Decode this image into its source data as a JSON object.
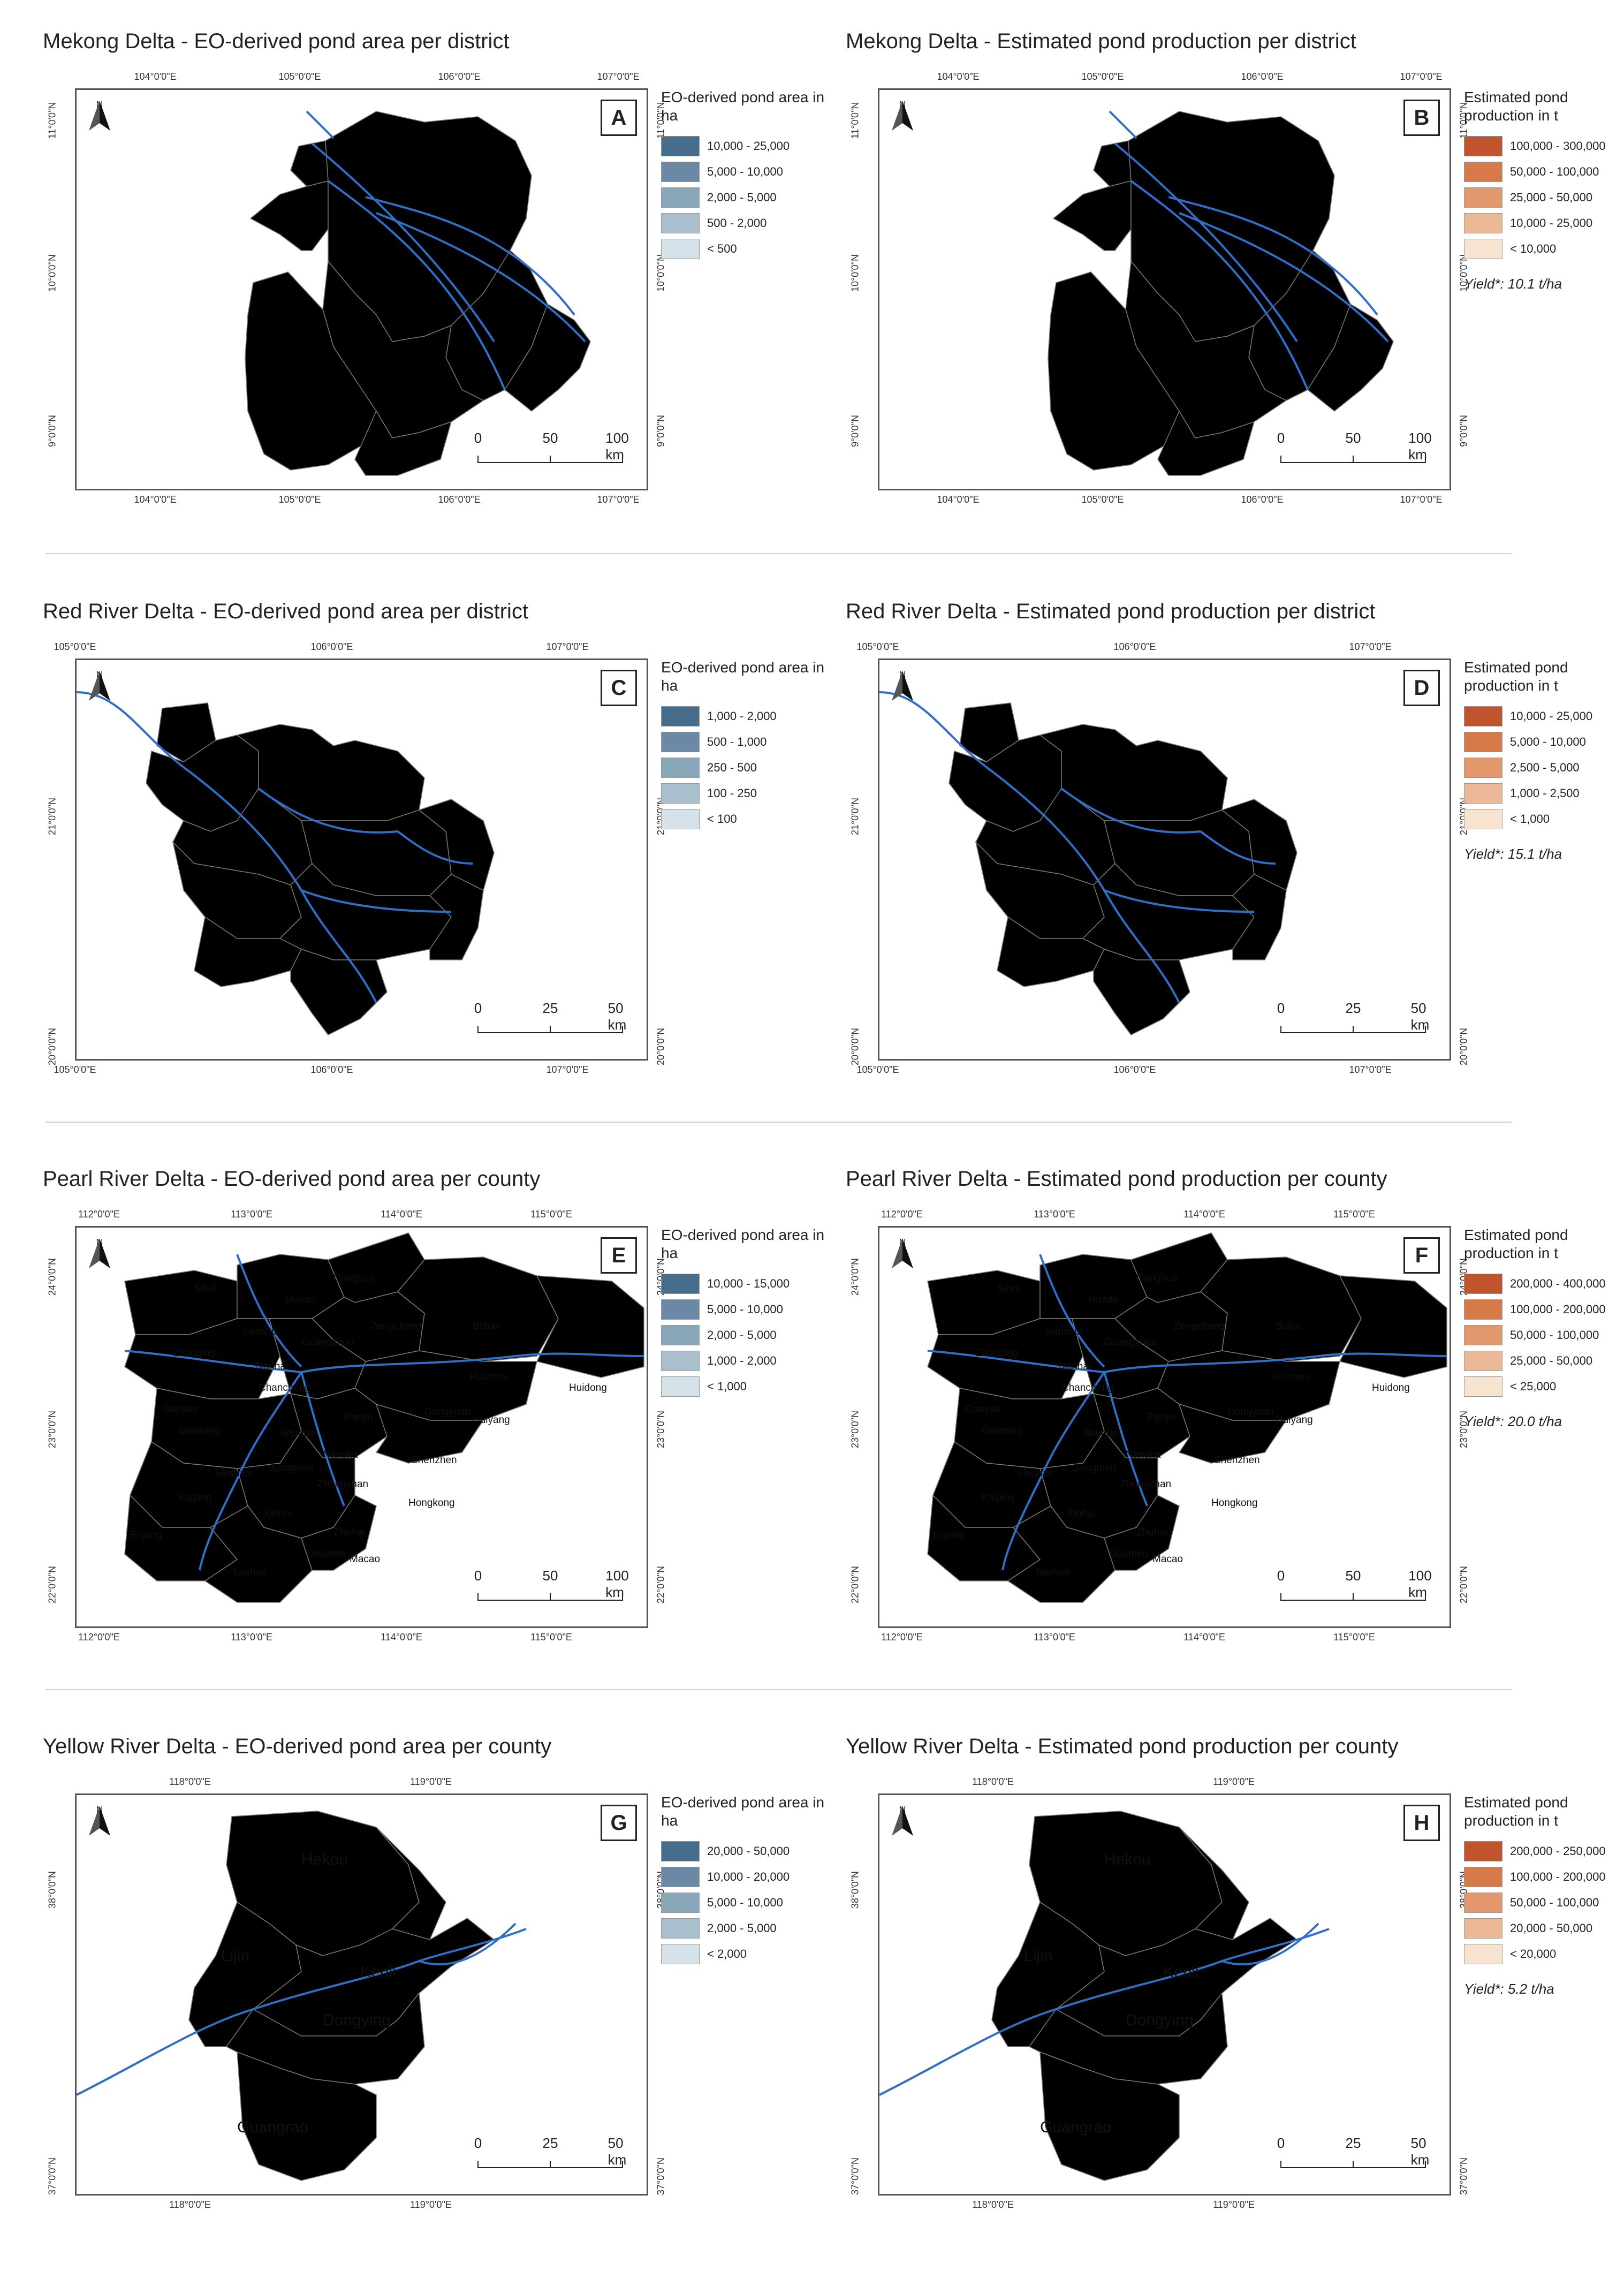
{
  "north_label": "N",
  "colors": {
    "blue": [
      "#d6e2e9",
      "#a9bfcd",
      "#8aa6b9",
      "#6b89a4",
      "#476d8c"
    ],
    "orange": [
      "#f7e4d0",
      "#ebb898",
      "#e2986c",
      "#d67a49",
      "#c0552d"
    ],
    "river": "#2f6fc8",
    "boundary": "#777777"
  },
  "panels": [
    {
      "letter": "A",
      "title": "Mekong Delta - EO-derived pond area per district",
      "coords_top": [
        "104°0'0\"E",
        "105°0'0\"E",
        "106°0'0\"E",
        "107°0'0\"E"
      ],
      "coords_bottom": [
        "104°0'0\"E",
        "105°0'0\"E",
        "106°0'0\"E",
        "107°0'0\"E"
      ],
      "coords_side": [
        "11°0'0\"N",
        "10°0'0\"N",
        "9°0'0\"N"
      ],
      "scale": [
        "0",
        "50",
        "100 km"
      ],
      "legend_title": "EO-derived pond area in ha",
      "legend_items": [
        "10,000 - 25,000",
        "5,000 - 10,000",
        "2,000 - 5,000",
        "500 - 2,000",
        "< 500"
      ],
      "yield": "",
      "palette": "blue",
      "places": []
    },
    {
      "letter": "B",
      "title": "Mekong Delta - Estimated pond production per district",
      "coords_top": [
        "104°0'0\"E",
        "105°0'0\"E",
        "106°0'0\"E",
        "107°0'0\"E"
      ],
      "coords_bottom": [
        "104°0'0\"E",
        "105°0'0\"E",
        "106°0'0\"E",
        "107°0'0\"E"
      ],
      "coords_side": [
        "11°0'0\"N",
        "10°0'0\"N",
        "9°0'0\"N"
      ],
      "scale": [
        "0",
        "50",
        "100 km"
      ],
      "legend_title": "Estimated pond production in t",
      "legend_items": [
        "100,000 - 300,000",
        "50,000 - 100,000",
        "25,000 - 50,000",
        "10,000 - 25,000",
        "< 10,000"
      ],
      "yield": "Yield*: 10.1 t/ha",
      "palette": "orange",
      "places": []
    },
    {
      "letter": "C",
      "title": "Red River Delta - EO-derived pond area  per district",
      "coords_top": [
        "105°0'0\"E",
        "106°0'0\"E",
        "107°0'0\"E"
      ],
      "coords_bottom": [
        "105°0'0\"E",
        "106°0'0\"E",
        "107°0'0\"E"
      ],
      "coords_side": [
        "21°0'0\"N",
        "20°0'0\"N"
      ],
      "scale": [
        "0",
        "25",
        "50 km"
      ],
      "legend_title": "EO-derived pond area in ha",
      "legend_items": [
        "1,000 - 2,000",
        "500 - 1,000",
        "250 - 500",
        "100 - 250",
        "< 100"
      ],
      "yield": "",
      "palette": "blue",
      "places": []
    },
    {
      "letter": "D",
      "title": "Red River Delta - Estimated pond production per district",
      "coords_top": [
        "105°0'0\"E",
        "106°0'0\"E",
        "107°0'0\"E"
      ],
      "coords_bottom": [
        "105°0'0\"E",
        "106°0'0\"E",
        "107°0'0\"E"
      ],
      "coords_side": [
        "21°0'0\"N",
        "20°0'0\"N"
      ],
      "scale": [
        "0",
        "25",
        "50 km"
      ],
      "legend_title": "Estimated pond production in t",
      "legend_items": [
        "10,000 - 25,000",
        "5,000 - 10,000",
        "2,500 - 5,000",
        "1,000 - 2,500",
        "< 1,000"
      ],
      "yield": "Yield*: 15.1 t/ha",
      "palette": "orange",
      "places": []
    },
    {
      "letter": "E",
      "title": "Pearl River Delta - EO-derived pond area per county",
      "coords_top": [
        "112°0'0\"E",
        "113°0'0\"E",
        "114°0'0\"E",
        "115°0'0\"E"
      ],
      "coords_bottom": [
        "112°0'0\"E",
        "113°0'0\"E",
        "114°0'0\"E",
        "115°0'0\"E"
      ],
      "coords_side": [
        "24°0'0\"N",
        "23°0'0\"N",
        "22°0'0\"N"
      ],
      "scale": [
        "0",
        "50",
        "100 km"
      ],
      "legend_title": "EO-derived pond area in ha",
      "legend_items": [
        "10,000 - 15,000",
        "5,000 - 10,000",
        "2,000 - 5,000",
        "1,000 - 2,000",
        "< 1,000"
      ],
      "yield": "",
      "palette": "blue",
      "places": [
        "Conghua",
        "Sihui",
        "Huadu",
        "Zengcheng",
        "Boluo",
        "Sanshui",
        "Guangzhou",
        "Zhaoqing",
        "Nanhai",
        "Huizhou",
        "Chancheng",
        "Huidong",
        "Gaoyao",
        "Panyu",
        "Dongyuan",
        "Gaoming",
        "Shunde",
        "Huiyang",
        "Nansha",
        "Shenzhen",
        "Heshan",
        "Jiangmen",
        "Zhongshan",
        "Kaiping",
        "Hongkong",
        "Xinhui",
        "Enping",
        "Zhuhai",
        "Doumen",
        "Macao",
        "Taishan"
      ]
    },
    {
      "letter": "F",
      "title": "Pearl River Delta - Estimated pond production per county",
      "coords_top": [
        "112°0'0\"E",
        "113°0'0\"E",
        "114°0'0\"E",
        "115°0'0\"E"
      ],
      "coords_bottom": [
        "112°0'0\"E",
        "113°0'0\"E",
        "114°0'0\"E",
        "115°0'0\"E"
      ],
      "coords_side": [
        "24°0'0\"N",
        "23°0'0\"N",
        "22°0'0\"N"
      ],
      "scale": [
        "0",
        "50",
        "100 km"
      ],
      "legend_title": "Estimated pond production in t",
      "legend_items": [
        "200,000 - 400,000",
        "100,000 - 200,000",
        "50,000 - 100,000",
        "25,000 - 50,000",
        "< 25,000"
      ],
      "yield": "Yield*: 20.0 t/ha",
      "palette": "orange",
      "places": [
        "Conghua",
        "Sihui",
        "Huadu",
        "Zengcheng",
        "Boluo",
        "Sanshui",
        "Guangzhou",
        "Zhaoqing",
        "Nanhai",
        "Huizhou",
        "Chancheng",
        "Huidong",
        "Gaoyao",
        "Panyu",
        "Dongyuan",
        "Gaoming",
        "Shunde",
        "Huiyang",
        "Nansha",
        "Shenzhen",
        "Heshan",
        "Jiangmen",
        "Zhongshan",
        "Kaiping",
        "Hongkong",
        "Xinhui",
        "Enping",
        "Zhuhai",
        "Doumen",
        "Macao",
        "Taishan"
      ]
    },
    {
      "letter": "G",
      "title": "Yellow River Delta - EO-derived pond area per county",
      "coords_top": [
        "118°0'0\"E",
        "119°0'0\"E"
      ],
      "coords_bottom": [
        "118°0'0\"E",
        "119°0'0\"E"
      ],
      "coords_side": [
        "38°0'0\"N",
        "37°0'0\"N"
      ],
      "scale": [
        "0",
        "25",
        "50 km"
      ],
      "legend_title": "EO-derived pond area in ha",
      "legend_items": [
        "20,000 - 50,000",
        "10,000 - 20,000",
        "5,000 - 10,000",
        "2,000 - 5,000",
        "< 2,000"
      ],
      "yield": "",
      "palette": "blue",
      "places": [
        "Hekou",
        "Lijin",
        "Kenli",
        "Dongying",
        "Guangrao"
      ]
    },
    {
      "letter": "H",
      "title": "Yellow River Delta - Estimated pond production per county",
      "coords_top": [
        "118°0'0\"E",
        "119°0'0\"E"
      ],
      "coords_bottom": [
        "118°0'0\"E",
        "119°0'0\"E"
      ],
      "coords_side": [
        "38°0'0\"N",
        "37°0'0\"N"
      ],
      "scale": [
        "0",
        "25",
        "50 km"
      ],
      "legend_title": "Estimated pond production in t",
      "legend_items": [
        "200,000 - 250,000",
        "100,000 - 200,000",
        "50,000 - 100,000",
        "20,000 - 50,000",
        "< 20,000"
      ],
      "yield": "Yield*: 5.2 t/ha",
      "palette": "orange",
      "places": [
        "Hekou",
        "Lijin",
        "Kenli",
        "Dongying",
        "Guangrao"
      ]
    }
  ]
}
